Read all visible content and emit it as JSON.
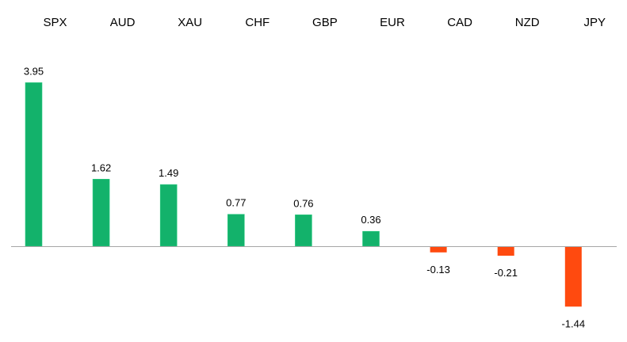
{
  "chart_data": {
    "type": "bar",
    "categories": [
      "SPX",
      "AUD",
      "XAU",
      "CHF",
      "GBP",
      "EUR",
      "CAD",
      "NZD",
      "JPY"
    ],
    "values": [
      3.95,
      1.62,
      1.49,
      0.77,
      0.76,
      0.36,
      -0.13,
      -0.21,
      -1.44
    ],
    "value_labels": [
      "3.95",
      "1.62",
      "1.49",
      "0.77",
      "0.76",
      "0.36",
      "-0.13",
      "-0.21",
      "-1.44"
    ],
    "title": "",
    "xlabel": "",
    "ylabel": "",
    "ylim": [
      -1.5,
      4.2
    ],
    "grid": false,
    "category_labels_position": "top",
    "colors": {
      "positive": "#13B26B",
      "positive_edge": "#2ecc82",
      "negative": "#FF4A0F",
      "axis": "#a6a6a6"
    }
  }
}
